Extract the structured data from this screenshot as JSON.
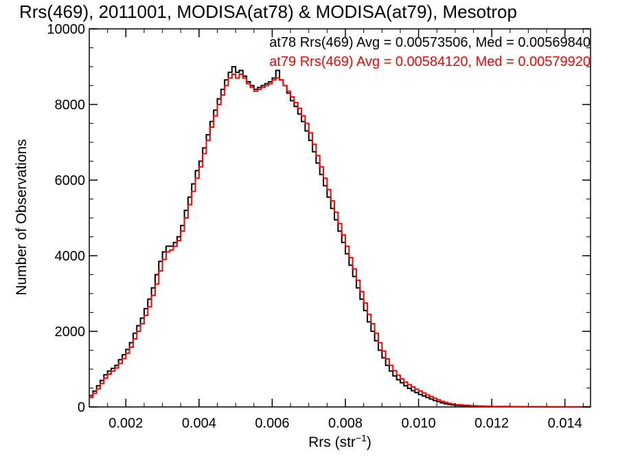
{
  "chart_data": {
    "type": "line",
    "title": "Rrs(469), 2011001, MODISA(at78) & MODISA(at79), Mesotrop",
    "xlabel_main": "Rrs (str",
    "xlabel_sup": "−1",
    "xlabel_tail": ")",
    "ylabel": "Number of Observations",
    "xlim": [
      0.001,
      0.0147
    ],
    "ylim": [
      0,
      10000
    ],
    "x_ticks": [
      "0.002",
      "0.004",
      "0.006",
      "0.008",
      "0.010",
      "0.012",
      "0.014"
    ],
    "x_tick_values": [
      0.002,
      0.004,
      0.006,
      0.008,
      0.01,
      0.012,
      0.014
    ],
    "y_ticks": [
      "0",
      "2000",
      "4000",
      "6000",
      "8000",
      "10000"
    ],
    "y_tick_values": [
      0,
      2000,
      4000,
      6000,
      8000,
      10000
    ],
    "grid": false,
    "legend_position": "top-right",
    "series": [
      {
        "name": "at78",
        "color": "#000000",
        "legend_text": "at78 Rrs(469) Avg = 0.00573506, Med = 0.00569840",
        "points": [
          [
            0.001,
            300
          ],
          [
            0.0011,
            420
          ],
          [
            0.0012,
            560
          ],
          [
            0.0013,
            700
          ],
          [
            0.0014,
            850
          ],
          [
            0.0015,
            950
          ],
          [
            0.0016,
            1020
          ],
          [
            0.0017,
            1100
          ],
          [
            0.0018,
            1250
          ],
          [
            0.0019,
            1380
          ],
          [
            0.002,
            1520
          ],
          [
            0.0021,
            1700
          ],
          [
            0.0022,
            1950
          ],
          [
            0.0023,
            2150
          ],
          [
            0.0024,
            2350
          ],
          [
            0.0025,
            2600
          ],
          [
            0.0026,
            2850
          ],
          [
            0.0027,
            3150
          ],
          [
            0.0028,
            3500
          ],
          [
            0.0029,
            3850
          ],
          [
            0.003,
            4100
          ],
          [
            0.0031,
            4250
          ],
          [
            0.0032,
            4250
          ],
          [
            0.0033,
            4350
          ],
          [
            0.0034,
            4500
          ],
          [
            0.0035,
            4800
          ],
          [
            0.0036,
            5200
          ],
          [
            0.0037,
            5550
          ],
          [
            0.0038,
            5900
          ],
          [
            0.0039,
            6250
          ],
          [
            0.004,
            6500
          ],
          [
            0.0041,
            6850
          ],
          [
            0.0042,
            7200
          ],
          [
            0.0043,
            7550
          ],
          [
            0.0044,
            7850
          ],
          [
            0.0045,
            8150
          ],
          [
            0.0046,
            8400
          ],
          [
            0.0047,
            8650
          ],
          [
            0.0048,
            8850
          ],
          [
            0.0049,
            9000
          ],
          [
            0.005,
            8850
          ],
          [
            0.0051,
            8900
          ],
          [
            0.0052,
            8750
          ],
          [
            0.0053,
            8600
          ],
          [
            0.0054,
            8500
          ],
          [
            0.0055,
            8400
          ],
          [
            0.0056,
            8450
          ],
          [
            0.0057,
            8500
          ],
          [
            0.0058,
            8550
          ],
          [
            0.0059,
            8600
          ],
          [
            0.006,
            8700
          ],
          [
            0.0061,
            8900
          ],
          [
            0.0062,
            8650
          ],
          [
            0.0063,
            8500
          ],
          [
            0.0064,
            8300
          ],
          [
            0.0065,
            8100
          ],
          [
            0.0066,
            7950
          ],
          [
            0.0067,
            7750
          ],
          [
            0.0068,
            7550
          ],
          [
            0.0069,
            7300
          ],
          [
            0.007,
            7050
          ],
          [
            0.0071,
            6750
          ],
          [
            0.0072,
            6450
          ],
          [
            0.0073,
            6150
          ],
          [
            0.0074,
            5850
          ],
          [
            0.0075,
            5550
          ],
          [
            0.0076,
            5250
          ],
          [
            0.0077,
            4950
          ],
          [
            0.0078,
            4650
          ],
          [
            0.0079,
            4350
          ],
          [
            0.008,
            4050
          ],
          [
            0.0081,
            3750
          ],
          [
            0.0082,
            3450
          ],
          [
            0.0083,
            3150
          ],
          [
            0.0084,
            2850
          ],
          [
            0.0085,
            2550
          ],
          [
            0.0086,
            2250
          ],
          [
            0.0087,
            2000
          ],
          [
            0.0088,
            1750
          ],
          [
            0.0089,
            1500
          ],
          [
            0.009,
            1300
          ],
          [
            0.0091,
            1100
          ],
          [
            0.0092,
            950
          ],
          [
            0.0093,
            820
          ],
          [
            0.0094,
            720
          ],
          [
            0.0095,
            640
          ],
          [
            0.0096,
            560
          ],
          [
            0.0097,
            490
          ],
          [
            0.0098,
            430
          ],
          [
            0.0099,
            380
          ],
          [
            0.01,
            330
          ],
          [
            0.0101,
            290
          ],
          [
            0.0102,
            250
          ],
          [
            0.0103,
            210
          ],
          [
            0.0104,
            170
          ],
          [
            0.0105,
            140
          ],
          [
            0.0106,
            110
          ],
          [
            0.0107,
            85
          ],
          [
            0.0108,
            65
          ],
          [
            0.0109,
            50
          ],
          [
            0.011,
            40
          ],
          [
            0.0112,
            30
          ],
          [
            0.0114,
            22
          ],
          [
            0.0116,
            16
          ],
          [
            0.0118,
            12
          ],
          [
            0.012,
            9
          ],
          [
            0.0125,
            6
          ],
          [
            0.013,
            4
          ],
          [
            0.0135,
            3
          ],
          [
            0.014,
            2
          ],
          [
            0.0147,
            1
          ]
        ]
      },
      {
        "name": "at79",
        "color": "#ff0000",
        "legend_text": "at79 Rrs(469) Avg = 0.00584120, Med = 0.00579920",
        "points": [
          [
            0.001,
            250
          ],
          [
            0.0011,
            360
          ],
          [
            0.0012,
            480
          ],
          [
            0.0013,
            620
          ],
          [
            0.0014,
            760
          ],
          [
            0.0015,
            870
          ],
          [
            0.0016,
            950
          ],
          [
            0.0017,
            1030
          ],
          [
            0.0018,
            1150
          ],
          [
            0.0019,
            1280
          ],
          [
            0.002,
            1420
          ],
          [
            0.0021,
            1580
          ],
          [
            0.0022,
            1800
          ],
          [
            0.0023,
            2000
          ],
          [
            0.0024,
            2200
          ],
          [
            0.0025,
            2420
          ],
          [
            0.0026,
            2650
          ],
          [
            0.0027,
            2950
          ],
          [
            0.0028,
            3250
          ],
          [
            0.0029,
            3600
          ],
          [
            0.003,
            3900
          ],
          [
            0.0031,
            4100
          ],
          [
            0.0032,
            4150
          ],
          [
            0.0033,
            4250
          ],
          [
            0.0034,
            4400
          ],
          [
            0.0035,
            4650
          ],
          [
            0.0036,
            5000
          ],
          [
            0.0037,
            5350
          ],
          [
            0.0038,
            5700
          ],
          [
            0.0039,
            6050
          ],
          [
            0.004,
            6350
          ],
          [
            0.0041,
            6700
          ],
          [
            0.0042,
            7050
          ],
          [
            0.0043,
            7400
          ],
          [
            0.0044,
            7700
          ],
          [
            0.0045,
            8000
          ],
          [
            0.0046,
            8250
          ],
          [
            0.0047,
            8500
          ],
          [
            0.0048,
            8700
          ],
          [
            0.0049,
            8800
          ],
          [
            0.005,
            8700
          ],
          [
            0.0051,
            8800
          ],
          [
            0.0052,
            8700
          ],
          [
            0.0053,
            8550
          ],
          [
            0.0054,
            8450
          ],
          [
            0.0055,
            8350
          ],
          [
            0.0056,
            8400
          ],
          [
            0.0057,
            8450
          ],
          [
            0.0058,
            8500
          ],
          [
            0.0059,
            8550
          ],
          [
            0.006,
            8650
          ],
          [
            0.0061,
            8700
          ],
          [
            0.0062,
            8650
          ],
          [
            0.0063,
            8500
          ],
          [
            0.0064,
            8350
          ],
          [
            0.0065,
            8200
          ],
          [
            0.0066,
            8050
          ],
          [
            0.0067,
            7900
          ],
          [
            0.0068,
            7700
          ],
          [
            0.0069,
            7500
          ],
          [
            0.007,
            7250
          ],
          [
            0.0071,
            6950
          ],
          [
            0.0072,
            6650
          ],
          [
            0.0073,
            6350
          ],
          [
            0.0074,
            6050
          ],
          [
            0.0075,
            5750
          ],
          [
            0.0076,
            5450
          ],
          [
            0.0077,
            5150
          ],
          [
            0.0078,
            4850
          ],
          [
            0.0079,
            4550
          ],
          [
            0.008,
            4250
          ],
          [
            0.0081,
            3950
          ],
          [
            0.0082,
            3650
          ],
          [
            0.0083,
            3350
          ],
          [
            0.0084,
            3050
          ],
          [
            0.0085,
            2750
          ],
          [
            0.0086,
            2450
          ],
          [
            0.0087,
            2200
          ],
          [
            0.0088,
            1950
          ],
          [
            0.0089,
            1700
          ],
          [
            0.009,
            1480
          ],
          [
            0.0091,
            1270
          ],
          [
            0.0092,
            1100
          ],
          [
            0.0093,
            960
          ],
          [
            0.0094,
            840
          ],
          [
            0.0095,
            740
          ],
          [
            0.0096,
            660
          ],
          [
            0.0097,
            590
          ],
          [
            0.0098,
            530
          ],
          [
            0.0099,
            470
          ],
          [
            0.01,
            420
          ],
          [
            0.0101,
            370
          ],
          [
            0.0102,
            320
          ],
          [
            0.0103,
            275
          ],
          [
            0.0104,
            230
          ],
          [
            0.0105,
            190
          ],
          [
            0.0106,
            150
          ],
          [
            0.0107,
            120
          ],
          [
            0.0108,
            95
          ],
          [
            0.0109,
            75
          ],
          [
            0.011,
            60
          ],
          [
            0.0112,
            45
          ],
          [
            0.0114,
            32
          ],
          [
            0.0116,
            24
          ],
          [
            0.0118,
            18
          ],
          [
            0.012,
            14
          ],
          [
            0.0125,
            9
          ],
          [
            0.013,
            6
          ],
          [
            0.0135,
            4
          ],
          [
            0.014,
            3
          ],
          [
            0.0147,
            2
          ]
        ]
      }
    ]
  }
}
